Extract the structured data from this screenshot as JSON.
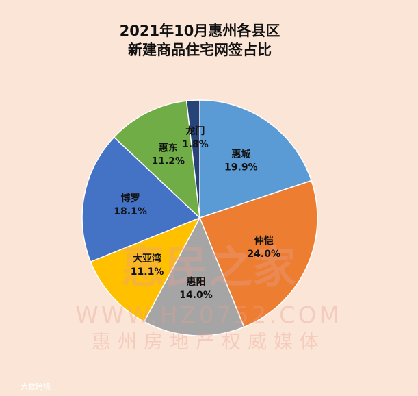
{
  "chart_data": {
    "type": "pie",
    "title_lines": [
      "2021年10月惠州各县区",
      "新建商品住宅网签占比"
    ],
    "categories": [
      "惠城",
      "仲恺",
      "惠阳",
      "大亚湾",
      "博罗",
      "惠东",
      "龙门"
    ],
    "values": [
      19.9,
      24.0,
      14.0,
      11.1,
      18.1,
      11.2,
      1.8
    ],
    "value_labels": [
      "19.9%",
      "24.0%",
      "14.0%",
      "11.1%",
      "18.1%",
      "11.2%",
      "1.8%"
    ],
    "colors": [
      "#5b9bd5",
      "#ed7d31",
      "#a5a5a5",
      "#ffc000",
      "#4472c4",
      "#70ad47",
      "#264478"
    ]
  },
  "watermark": {
    "brand": "惠民之家",
    "url": "WWW.HZ0752.COM",
    "slogan": "惠州房地产权威媒体",
    "source": "大数跨境"
  }
}
